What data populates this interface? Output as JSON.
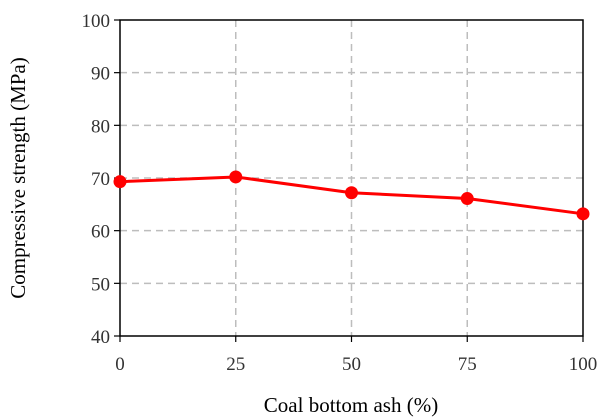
{
  "chart_data": {
    "type": "line",
    "xlabel": "Coal bottom ash (%)",
    "ylabel": "Compressive strength (MPa)",
    "xlim": [
      0,
      100
    ],
    "ylim": [
      40,
      100
    ],
    "x_ticks": [
      0,
      25,
      50,
      75,
      100
    ],
    "y_ticks": [
      40,
      50,
      60,
      70,
      80,
      90,
      100
    ],
    "grid": true,
    "series": [
      {
        "color": "#ff0000",
        "x": [
          0,
          25,
          50,
          75,
          100
        ],
        "values": [
          69.3,
          70.2,
          67.2,
          66.1,
          63.2
        ]
      }
    ]
  }
}
